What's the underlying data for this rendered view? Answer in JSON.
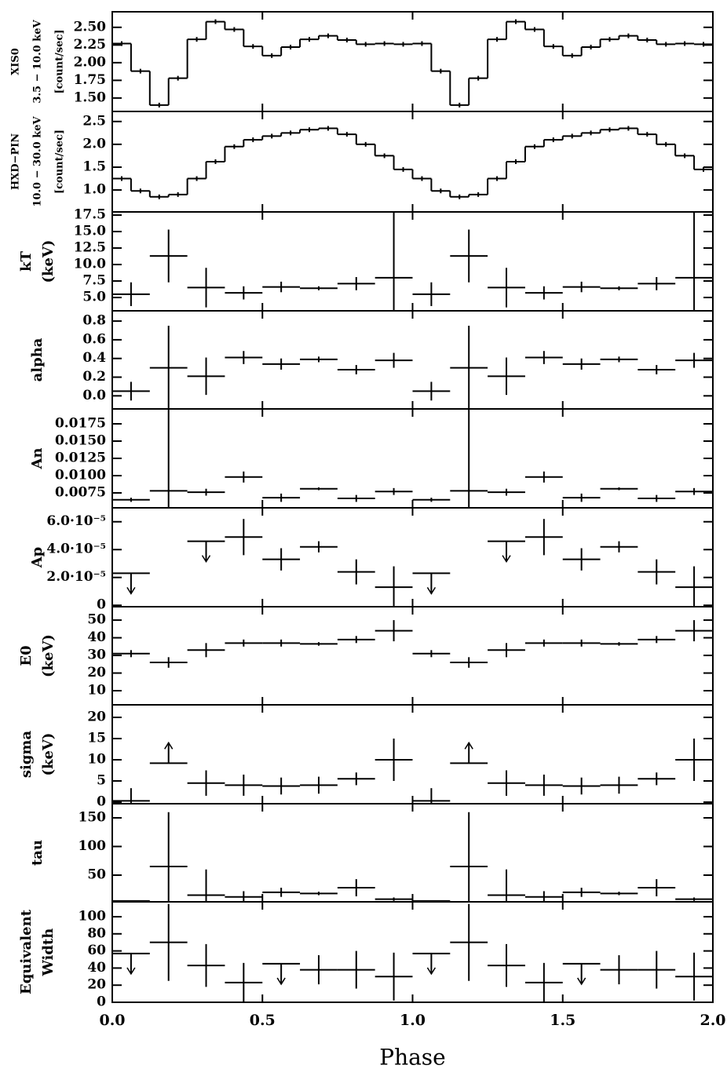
{
  "chart_data": [
    {
      "type": "histogram",
      "ylabel": [
        "XIS0",
        "3.5 − 10.0 keV",
        "[count/sec]"
      ],
      "bins": [
        0,
        0.0625,
        0.125,
        0.1875,
        0.25,
        0.3125,
        0.375,
        0.4375,
        0.5,
        0.5625,
        0.625,
        0.6875,
        0.75,
        0.8125,
        0.875,
        0.9375,
        1,
        1.0625,
        1.125,
        1.1875,
        1.25,
        1.3125,
        1.375,
        1.4375,
        1.5,
        1.5625,
        1.625,
        1.6875,
        1.75,
        1.8125,
        1.875,
        1.9375,
        2
      ],
      "values": [
        2.27,
        1.88,
        1.4,
        1.78,
        2.33,
        2.58,
        2.47,
        2.23,
        2.1,
        2.22,
        2.33,
        2.38,
        2.32,
        2.26,
        2.27,
        2.26,
        2.27,
        1.88,
        1.4,
        1.78,
        2.33,
        2.58,
        2.47,
        2.23,
        2.1,
        2.22,
        2.33,
        2.38,
        2.32,
        2.26,
        2.27,
        2.26
      ],
      "ylim": [
        1.31,
        2.72
      ],
      "yticks": [
        {
          "value": 2.5,
          "label": "2.50"
        },
        2.25,
        {
          "value": 2,
          "label": "2.00"
        },
        1.75,
        {
          "value": 1.5,
          "label": "1.50"
        }
      ]
    },
    {
      "type": "histogram",
      "ylabel": [
        "HXD−PIN",
        "10.0 − 30.0 keV",
        "[count/sec]"
      ],
      "bins": [
        0,
        0.0625,
        0.125,
        0.1875,
        0.25,
        0.3125,
        0.375,
        0.4375,
        0.5,
        0.5625,
        0.625,
        0.6875,
        0.75,
        0.8125,
        0.875,
        0.9375,
        1,
        1.0625,
        1.125,
        1.1875,
        1.25,
        1.3125,
        1.375,
        1.4375,
        1.5,
        1.5625,
        1.625,
        1.6875,
        1.75,
        1.8125,
        1.875,
        1.9375,
        2
      ],
      "values": [
        1.25,
        0.98,
        0.85,
        0.9,
        1.25,
        1.62,
        1.95,
        2.1,
        2.18,
        2.25,
        2.32,
        2.35,
        2.22,
        2.0,
        1.75,
        1.45,
        1.25,
        0.98,
        0.85,
        0.9,
        1.25,
        1.62,
        1.95,
        2.1,
        2.18,
        2.25,
        2.32,
        2.35,
        2.22,
        2.0,
        1.75,
        1.45
      ],
      "ylim": [
        0.52,
        2.72
      ],
      "yticks": [
        2.5,
        {
          "value": 2,
          "label": "2.0"
        },
        1.5,
        {
          "value": 1,
          "label": "1.0"
        }
      ]
    },
    {
      "type": "errorbar",
      "ylabel": [
        "kT",
        "(keV)"
      ],
      "xerr": 0.0625,
      "x": [
        0.0625,
        0.1875,
        0.3125,
        0.4375,
        0.5625,
        0.6875,
        0.8125,
        0.9375,
        1.0625,
        1.1875,
        1.3125,
        1.4375,
        1.5625,
        1.6875,
        1.8125,
        1.9375
      ],
      "values": [
        5.5,
        11.3,
        6.5,
        5.7,
        6.6,
        6.4,
        7.1,
        8.0,
        5.5,
        11.3,
        6.5,
        5.7,
        6.6,
        6.4,
        7.1,
        8.0
      ],
      "errors": [
        1.8,
        4,
        3,
        1,
        0.8,
        0.3,
        1,
        10,
        1.8,
        4,
        3,
        1,
        0.8,
        0.3,
        1,
        10
      ],
      "ylim": [
        2.98,
        17.98
      ],
      "yticks": [
        17.5,
        {
          "value": 15,
          "label": "15.0"
        },
        12.5,
        {
          "value": 10,
          "label": "10.0"
        },
        7.5,
        {
          "value": 5,
          "label": "5.0"
        }
      ]
    },
    {
      "type": "errorbar",
      "ylabel": [
        "alpha"
      ],
      "xerr": 0.0625,
      "x": [
        0.0625,
        0.1875,
        0.3125,
        0.4375,
        0.5625,
        0.6875,
        0.8125,
        0.9375,
        1.0625,
        1.1875,
        1.3125,
        1.4375,
        1.5625,
        1.6875,
        1.8125,
        1.9375
      ],
      "values": [
        0.05,
        0.3,
        0.21,
        0.41,
        0.34,
        0.39,
        0.28,
        0.38,
        0.05,
        0.3,
        0.21,
        0.41,
        0.34,
        0.39,
        0.28,
        0.38
      ],
      "errors": [
        0.1,
        0.45,
        0.2,
        0.07,
        0.06,
        0.03,
        0.05,
        0.08,
        0.1,
        0.45,
        0.2,
        0.07,
        0.06,
        0.03,
        0.05,
        0.08
      ],
      "ylim": [
        -0.14,
        0.91
      ],
      "yticks": [
        {
          "value": 0,
          "label": "0.0"
        },
        0.2,
        0.4,
        0.6,
        0.8
      ]
    },
    {
      "type": "errorbar",
      "ylabel": [
        "An"
      ],
      "xerr": 0.0625,
      "x": [
        0.0625,
        0.1875,
        0.3125,
        0.4375,
        0.5625,
        0.6875,
        0.8125,
        0.9375,
        1.0625,
        1.1875,
        1.3125,
        1.4375,
        1.5625,
        1.6875,
        1.8125,
        1.9375
      ],
      "values": [
        0.0065,
        0.0078,
        0.0076,
        0.0098,
        0.0068,
        0.0081,
        0.0067,
        0.0077,
        0.0065,
        0.0078,
        0.0076,
        0.0098,
        0.0068,
        0.0081,
        0.0067,
        0.0077
      ],
      "errors": [
        0.0003,
        0.012,
        0.0005,
        0.0008,
        0.0006,
        0.0002,
        0.0005,
        0.0005,
        0.0003,
        0.012,
        0.0005,
        0.0008,
        0.0006,
        0.0002,
        0.0005,
        0.0005
      ],
      "ylim": [
        0.00534,
        0.01966
      ],
      "yticks": [
        0.0175,
        {
          "value": 0.015,
          "label": "0.0150"
        },
        0.0125,
        {
          "value": 0.01,
          "label": "0.0100"
        },
        0.0075
      ]
    },
    {
      "type": "errorbar",
      "ylabel": [
        "Ap"
      ],
      "xerr": 0.0625,
      "x": [
        0.0625,
        0.1875,
        0.3125,
        0.4375,
        0.5625,
        0.6875,
        0.8125,
        0.9375,
        1.0625,
        1.1875,
        1.3125,
        1.4375,
        1.5625,
        1.6875,
        1.8125,
        1.9375
      ],
      "values": [
        2.3e-05,
        null,
        4.6e-05,
        4.9e-05,
        3.3e-05,
        4.2e-05,
        2.4e-05,
        1.3e-05,
        2.3e-05,
        null,
        4.6e-05,
        4.9e-05,
        3.3e-05,
        4.2e-05,
        2.4e-05,
        1.3e-05
      ],
      "errors": [
        null,
        null,
        null,
        1.3e-05,
        8e-06,
        4e-06,
        9e-06,
        1.5e-05,
        null,
        null,
        null,
        1.3e-05,
        8e-06,
        4e-06,
        9e-06,
        1.5e-05
      ],
      "upper_limits": [
        true,
        false,
        true,
        false,
        false,
        false,
        false,
        false,
        true,
        false,
        true,
        false,
        false,
        false,
        false,
        false
      ],
      "ylim": [
        -1e-06,
        7e-05
      ],
      "yticks": [
        0,
        {
          "value": 2e-05,
          "label": "2.0·10⁻⁵"
        },
        {
          "value": 4e-05,
          "label": "4.0·10⁻⁵"
        },
        {
          "value": 6e-05,
          "label": "6.0·10⁻⁵"
        }
      ]
    },
    {
      "type": "errorbar",
      "ylabel": [
        "E0",
        "(keV)"
      ],
      "xerr": 0.0625,
      "x": [
        0.0625,
        0.1875,
        0.3125,
        0.4375,
        0.5625,
        0.6875,
        0.8125,
        0.9375,
        1.0625,
        1.1875,
        1.3125,
        1.4375,
        1.5625,
        1.6875,
        1.8125,
        1.9375
      ],
      "values": [
        31,
        26,
        33,
        37,
        37,
        36.5,
        39,
        44,
        31,
        26,
        33,
        37,
        37,
        36.5,
        39,
        44
      ],
      "errors": [
        2,
        3,
        4,
        2,
        2,
        1,
        2,
        6,
        2,
        3,
        4,
        2,
        2,
        1,
        2,
        6
      ],
      "ylim": [
        2,
        57.6
      ],
      "yticks": [
        10,
        20,
        30,
        40,
        50
      ]
    },
    {
      "type": "errorbar",
      "ylabel": [
        "sigma",
        "(keV)"
      ],
      "xerr": 0.0625,
      "x": [
        0.0625,
        0.1875,
        0.3125,
        0.4375,
        0.5625,
        0.6875,
        0.8125,
        0.9375,
        1.0625,
        1.1875,
        1.3125,
        1.4375,
        1.5625,
        1.6875,
        1.8125,
        1.9375
      ],
      "values": [
        0.3,
        9.2,
        4.5,
        4,
        3.8,
        4,
        5.5,
        10,
        0.3,
        9.2,
        4.5,
        4,
        3.8,
        4,
        5.5,
        10
      ],
      "errors": [
        3,
        null,
        3,
        2.5,
        2,
        2,
        1.5,
        5,
        3,
        null,
        3,
        2.5,
        2,
        2,
        1.5,
        5
      ],
      "lower_limits": [
        false,
        true,
        false,
        false,
        false,
        false,
        false,
        false,
        false,
        true,
        false,
        false,
        false,
        false,
        false,
        false
      ],
      "ylim": [
        -0.37,
        22.96
      ],
      "yticks": [
        0,
        5,
        10,
        15,
        20
      ]
    },
    {
      "type": "errorbar",
      "ylabel": [
        "tau"
      ],
      "xerr": 0.0625,
      "x": [
        0.0625,
        0.1875,
        0.3125,
        0.4375,
        0.5625,
        0.6875,
        0.8125,
        0.9375,
        1.0625,
        1.1875,
        1.3125,
        1.4375,
        1.5625,
        1.6875,
        1.8125,
        1.9375
      ],
      "values": [
        5,
        65,
        15,
        12,
        20,
        18,
        28,
        8,
        5,
        65,
        15,
        12,
        20,
        18,
        28,
        8
      ],
      "errors": [
        1,
        95,
        45,
        10,
        8,
        3,
        15,
        3,
        1,
        95,
        45,
        10,
        8,
        3,
        15,
        3
      ],
      "ylim": [
        3.4,
        174.7
      ],
      "yticks": [
        50,
        100,
        150
      ]
    },
    {
      "type": "errorbar",
      "ylabel": [
        "Equivalent",
        "Width"
      ],
      "xerr": 0.0625,
      "x": [
        0.0625,
        0.1875,
        0.3125,
        0.4375,
        0.5625,
        0.6875,
        0.8125,
        0.9375,
        1.0625,
        1.1875,
        1.3125,
        1.4375,
        1.5625,
        1.6875,
        1.8125,
        1.9375
      ],
      "values": [
        57,
        70,
        43,
        23,
        45,
        38,
        38,
        30,
        57,
        70,
        43,
        23,
        45,
        38,
        38,
        30
      ],
      "errors": [
        null,
        45,
        25,
        23,
        null,
        17,
        22,
        28,
        null,
        45,
        25,
        23,
        null,
        17,
        22,
        28
      ],
      "upper_limits": [
        true,
        false,
        false,
        false,
        true,
        false,
        false,
        false,
        true,
        false,
        false,
        false,
        true,
        false,
        false,
        false
      ],
      "ylim": [
        0,
        117.4
      ],
      "yticks": [
        0,
        20,
        40,
        60,
        80,
        100
      ],
      "xlabel": "Phase",
      "xlim": [
        0,
        2
      ],
      "xticks": [
        {
          "value": 0,
          "label": "0.0"
        },
        0.5,
        {
          "value": 1,
          "label": "1.0"
        },
        1.5,
        {
          "value": 2,
          "label": "2.0"
        }
      ]
    }
  ]
}
